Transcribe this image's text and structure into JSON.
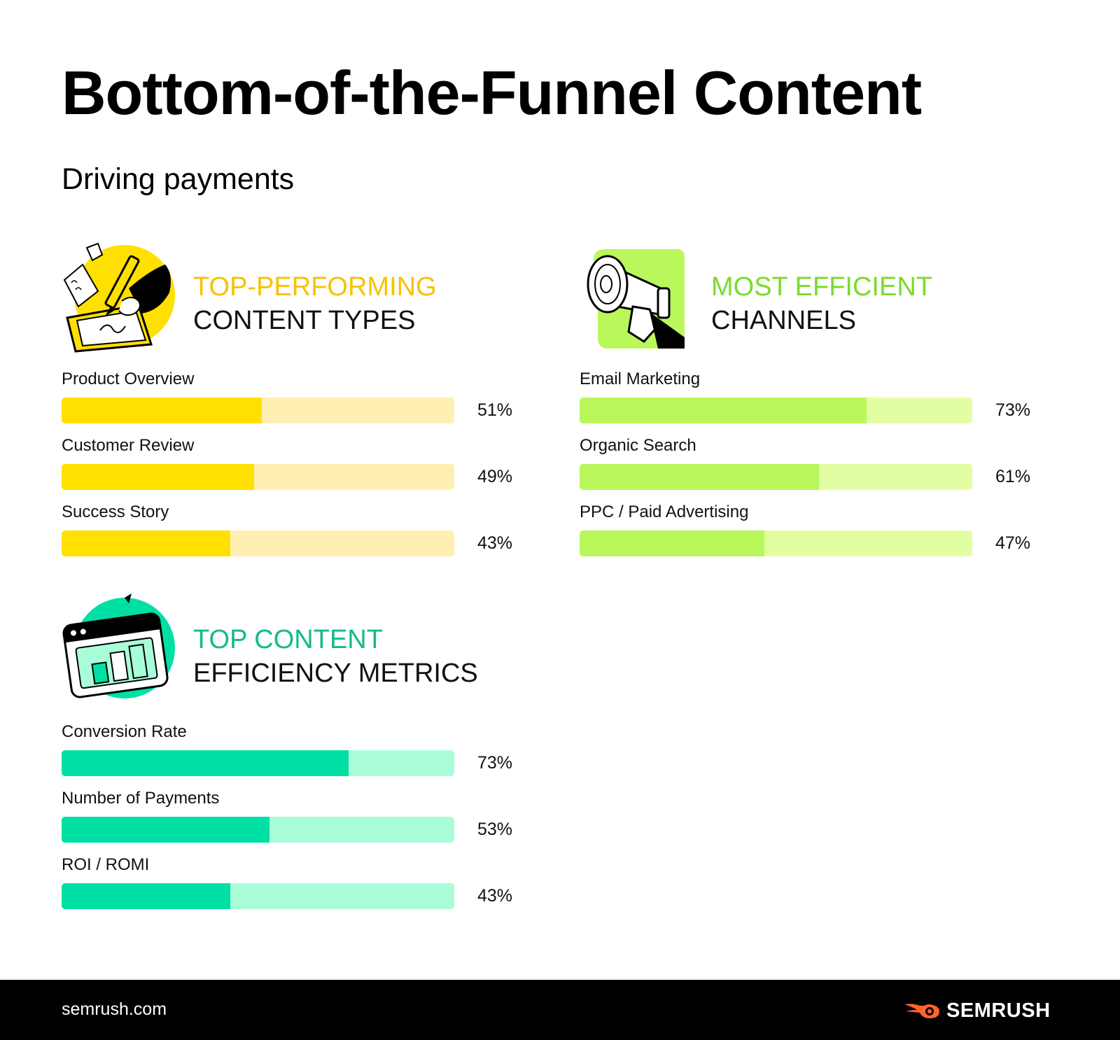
{
  "header": {
    "title": "Bottom-of-the-Funnel Content",
    "subtitle": "Driving payments"
  },
  "colors": {
    "yellow": "#FFE000",
    "yellow_light": "#FFEFB3",
    "lime": "#B9F75B",
    "lime_light": "#E3FEA2",
    "teal": "#00E0A5",
    "teal_light": "#A9FDD8",
    "orange": "#FF642D"
  },
  "chart_data": [
    {
      "type": "bar",
      "title_highlight": "TOP-PERFORMING",
      "title_rest": "CONTENT TYPES",
      "icon": "pen-tablet-icon",
      "color": "#FFE000",
      "track_color": "#FFEFB3",
      "categories": [
        "Product Overview",
        "Customer Review",
        "Success Story"
      ],
      "values": [
        51,
        49,
        43
      ],
      "labels": [
        "51%",
        "49%",
        "43%"
      ],
      "ylim": [
        0,
        100
      ]
    },
    {
      "type": "bar",
      "title_highlight": "MOST EFFICIENT",
      "title_rest": "CHANNELS",
      "icon": "megaphone-icon",
      "color": "#B9F75B",
      "track_color": "#E3FEA2",
      "categories": [
        "Email Marketing",
        "Organic Search",
        "PPC / Paid Advertising"
      ],
      "values": [
        73,
        61,
        47
      ],
      "labels": [
        "73%",
        "61%",
        "47%"
      ],
      "ylim": [
        0,
        100
      ]
    },
    {
      "type": "bar",
      "title_highlight": "TOP CONTENT",
      "title_rest": "EFFICIENCY METRICS",
      "icon": "analytics-window-icon",
      "color": "#00E0A5",
      "track_color": "#A9FDD8",
      "categories": [
        "Conversion Rate",
        "Number of Payments",
        "ROI / ROMI"
      ],
      "values": [
        73,
        53,
        43
      ],
      "labels": [
        "73%",
        "53%",
        "43%"
      ],
      "ylim": [
        0,
        100
      ]
    }
  ],
  "footer": {
    "site": "semrush.com",
    "brand": "SEMRUSH"
  }
}
